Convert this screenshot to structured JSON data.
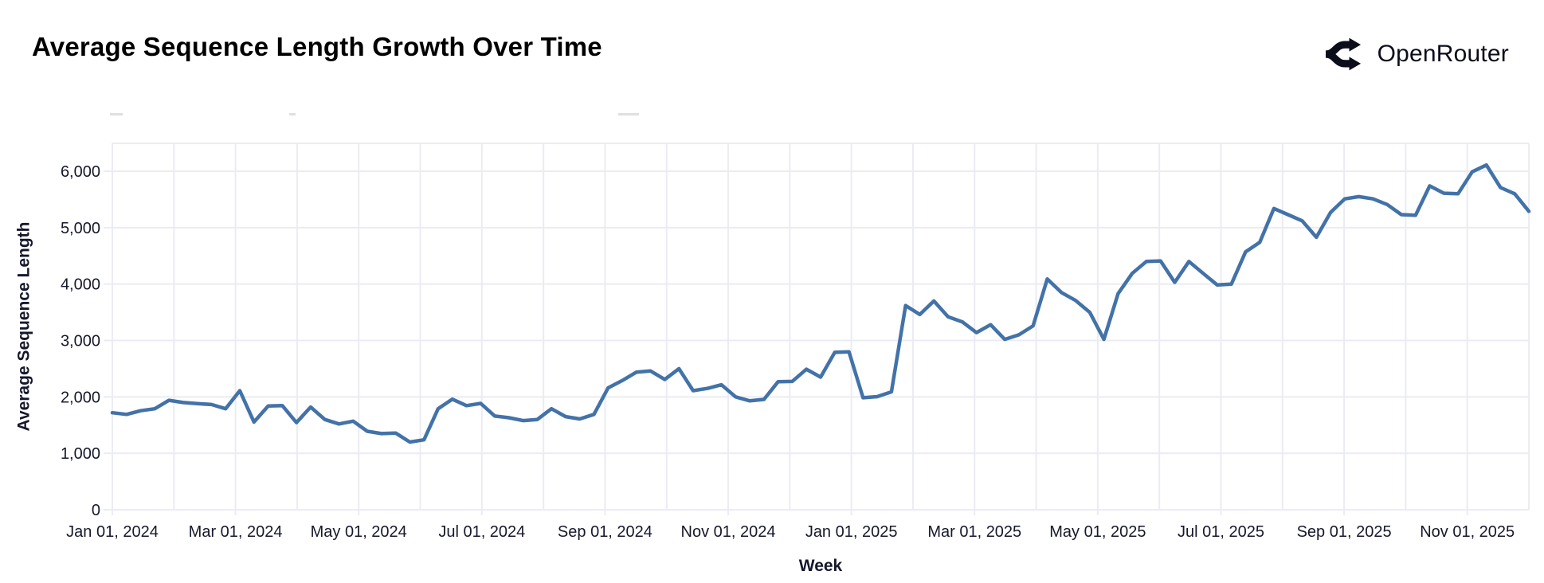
{
  "header": {
    "title": "Average Sequence Length Growth Over Time",
    "brand": "OpenRouter"
  },
  "chart_data": {
    "type": "line",
    "title": "Average Sequence Length Growth Over Time",
    "xlabel": "Week",
    "ylabel": "Average Sequence Length",
    "x_start": "Jan 01, 2024",
    "x_frequency": "weekly",
    "ylim": [
      0,
      6500
    ],
    "grid": true,
    "legend_position": "none",
    "y_ticks": [
      "0",
      "1,000",
      "2,000",
      "3,000",
      "4,000",
      "5,000",
      "6,000"
    ],
    "y_tick_values": [
      0,
      1000,
      2000,
      3000,
      4000,
      5000,
      6000
    ],
    "x_ticks": [
      "Jan 01, 2024",
      "Mar 01, 2024",
      "May 01, 2024",
      "Jul 01, 2024",
      "Sep 01, 2024",
      "Nov 01, 2024",
      "Jan 01, 2025",
      "Mar 01, 2025",
      "May 01, 2025",
      "Jul 01, 2025",
      "Sep 01, 2025",
      "Nov 01, 2025"
    ],
    "line_color": "#4372a8",
    "grid_color": "#ebecf3",
    "tick_text_color": "#16182c",
    "series": [
      {
        "name": "Average Sequence Length",
        "values": [
          1720,
          1690,
          1755,
          1790,
          1940,
          1900,
          1880,
          1865,
          1790,
          2110,
          1555,
          1840,
          1845,
          1545,
          1820,
          1600,
          1520,
          1570,
          1390,
          1350,
          1360,
          1200,
          1240,
          1790,
          1960,
          1845,
          1885,
          1660,
          1630,
          1580,
          1600,
          1790,
          1650,
          1610,
          1690,
          2160,
          2290,
          2440,
          2460,
          2310,
          2500,
          2110,
          2150,
          2215,
          2000,
          1930,
          1955,
          2270,
          2275,
          2490,
          2350,
          2790,
          2800,
          1985,
          2005,
          2090,
          3620,
          3460,
          3700,
          3420,
          3330,
          3140,
          3280,
          3020,
          3100,
          3260,
          4090,
          3850,
          3710,
          3500,
          3020,
          3830,
          4190,
          4400,
          4410,
          4030,
          4400,
          4190,
          3985,
          4000,
          4570,
          4740,
          5340,
          5230,
          5120,
          4830,
          5270,
          5510,
          5550,
          5510,
          5410,
          5230,
          5220,
          5740,
          5610,
          5600,
          5990,
          6110,
          5710,
          5600,
          5290
        ]
      }
    ]
  }
}
